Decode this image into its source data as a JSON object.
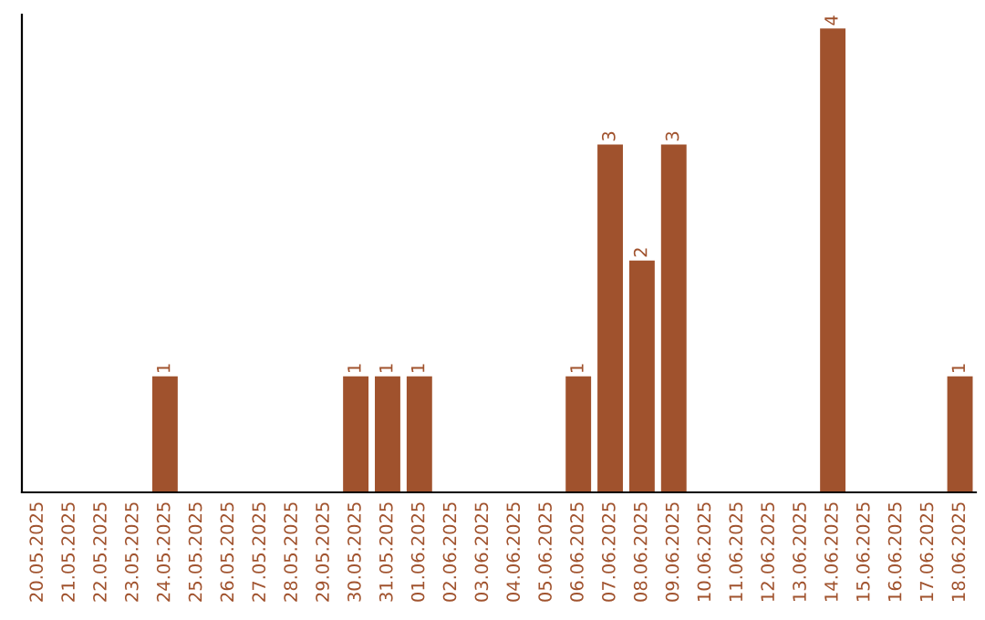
{
  "chart_data": {
    "type": "bar",
    "categories": [
      "20.05.2025",
      "21.05.2025",
      "22.05.2025",
      "23.05.2025",
      "24.05.2025",
      "25.05.2025",
      "26.05.2025",
      "27.05.2025",
      "28.05.2025",
      "29.05.2025",
      "30.05.2025",
      "31.05.2025",
      "01.06.2025",
      "02.06.2025",
      "03.06.2025",
      "04.06.2025",
      "05.06.2025",
      "06.06.2025",
      "07.06.2025",
      "08.06.2025",
      "09.06.2025",
      "10.06.2025",
      "11.06.2025",
      "12.06.2025",
      "13.06.2025",
      "14.06.2025",
      "15.06.2025",
      "16.06.2025",
      "17.06.2025",
      "18.06.2025"
    ],
    "values": [
      0,
      0,
      0,
      0,
      1,
      0,
      0,
      0,
      0,
      0,
      1,
      1,
      1,
      0,
      0,
      0,
      0,
      1,
      3,
      2,
      3,
      0,
      0,
      0,
      0,
      4,
      0,
      0,
      0,
      1
    ],
    "value_labels": [
      null,
      null,
      null,
      null,
      "1",
      null,
      null,
      null,
      null,
      null,
      "1",
      "1",
      "1",
      null,
      null,
      null,
      null,
      "1",
      "3",
      "2",
      "3",
      null,
      null,
      null,
      null,
      "4",
      null,
      null,
      null,
      "1"
    ],
    "color": "#a0522d",
    "tick_labels": "x",
    "grid": false,
    "legend": false
  }
}
